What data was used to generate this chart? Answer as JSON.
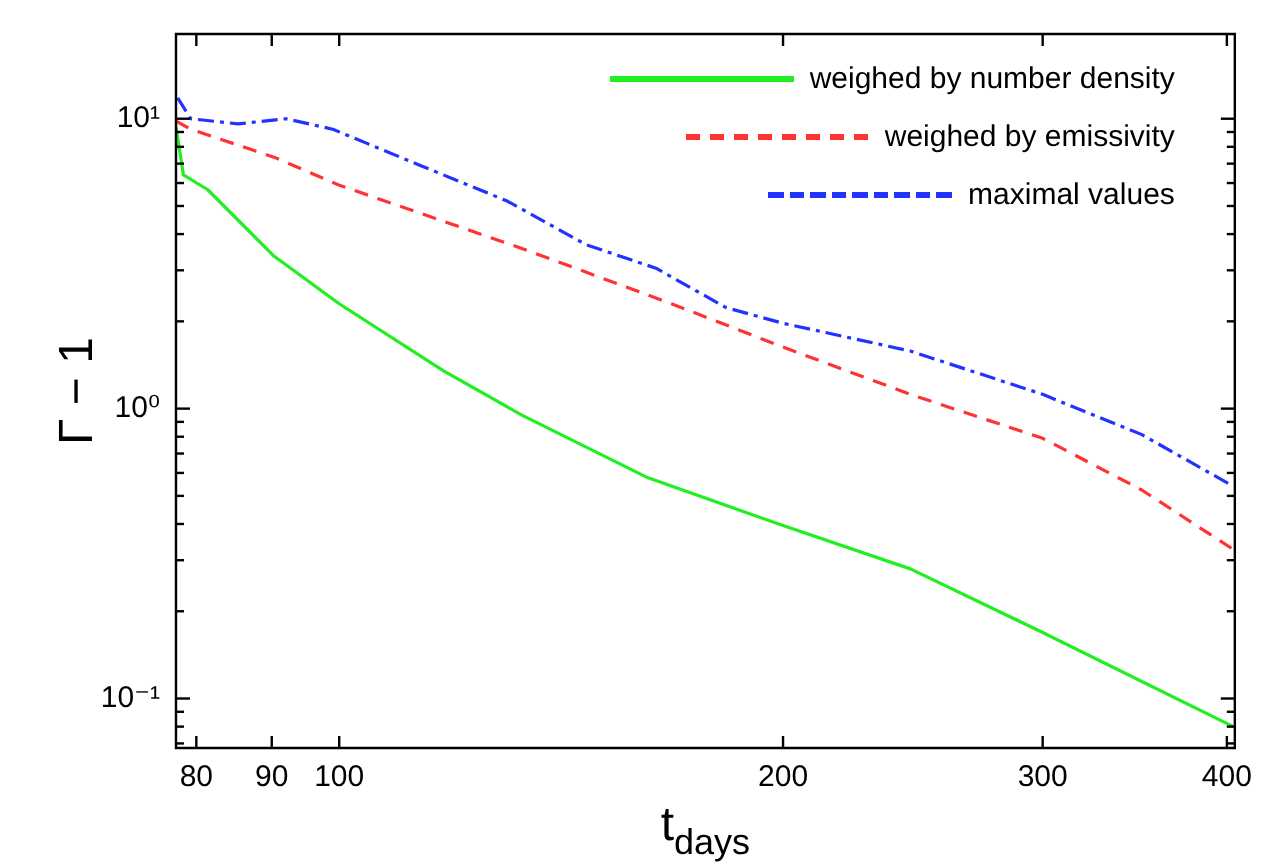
{
  "chart_data": {
    "type": "line",
    "xlabel": "t$_{days}$",
    "ylabel": "Γ − 1",
    "log": "xy",
    "grid": false,
    "legend": "top right",
    "marker": "none",
    "xlim": [
      77.5,
      405
    ],
    "ylim": [
      0.0675,
      19.6
    ],
    "xticks": [
      80,
      90,
      100,
      200,
      300,
      400
    ],
    "yticks": [
      {
        "value": 0.07,
        "label": null
      },
      {
        "value": 0.08,
        "label": null
      },
      {
        "value": 0.09,
        "label": null
      },
      {
        "value": 0.1,
        "label": "10⁻¹"
      },
      {
        "value": 0.2,
        "label": null
      },
      {
        "value": 0.3,
        "label": null
      },
      {
        "value": 0.4,
        "label": null
      },
      {
        "value": 0.5,
        "label": null
      },
      {
        "value": 0.6,
        "label": null
      },
      {
        "value": 0.7,
        "label": null
      },
      {
        "value": 0.8,
        "label": null
      },
      {
        "value": 0.9,
        "label": null
      },
      {
        "value": 1,
        "label": "10⁰"
      },
      {
        "value": 2,
        "label": null
      },
      {
        "value": 3,
        "label": null
      },
      {
        "value": 4,
        "label": null
      },
      {
        "value": 5,
        "label": null
      },
      {
        "value": 6,
        "label": null
      },
      {
        "value": 7,
        "label": null
      },
      {
        "value": 8,
        "label": null
      },
      {
        "value": 9,
        "label": null
      },
      {
        "value": 10,
        "label": "10¹"
      }
    ],
    "series": [
      {
        "name": "weighed by number density",
        "color": "#22ee22",
        "line_style": "solid",
        "x": [
          77.5,
          78.4,
          81.4,
          90.3,
          100,
          117.7,
          133,
          162,
          200,
          244,
          300,
          404
        ],
        "values": [
          9.4,
          6.4,
          5.7,
          3.36,
          2.3,
          1.35,
          0.95,
          0.577,
          0.395,
          0.28,
          0.169,
          0.08
        ]
      },
      {
        "name": "weighed by emissivity",
        "color": "#ff3333",
        "line_style": "dashed",
        "x": [
          77.5,
          79.3,
          90.3,
          100,
          133,
          168,
          200,
          244,
          300,
          350,
          404
        ],
        "values": [
          9.8,
          9.2,
          7.37,
          5.9,
          3.57,
          2.3,
          1.63,
          1.12,
          0.79,
          0.525,
          0.327
        ]
      },
      {
        "name": "maximal values",
        "color": "#2233ff",
        "line_style": "dotted",
        "x": [
          77.7,
          79.3,
          85.4,
          92,
          99,
          113.5,
          130,
          147,
          164,
          183,
          200,
          244,
          300,
          350,
          404
        ],
        "values": [
          11.8,
          10,
          9.6,
          10,
          9.2,
          6.9,
          5.2,
          3.68,
          3.05,
          2.23,
          1.97,
          1.58,
          1.12,
          0.815,
          0.54
        ]
      }
    ]
  }
}
